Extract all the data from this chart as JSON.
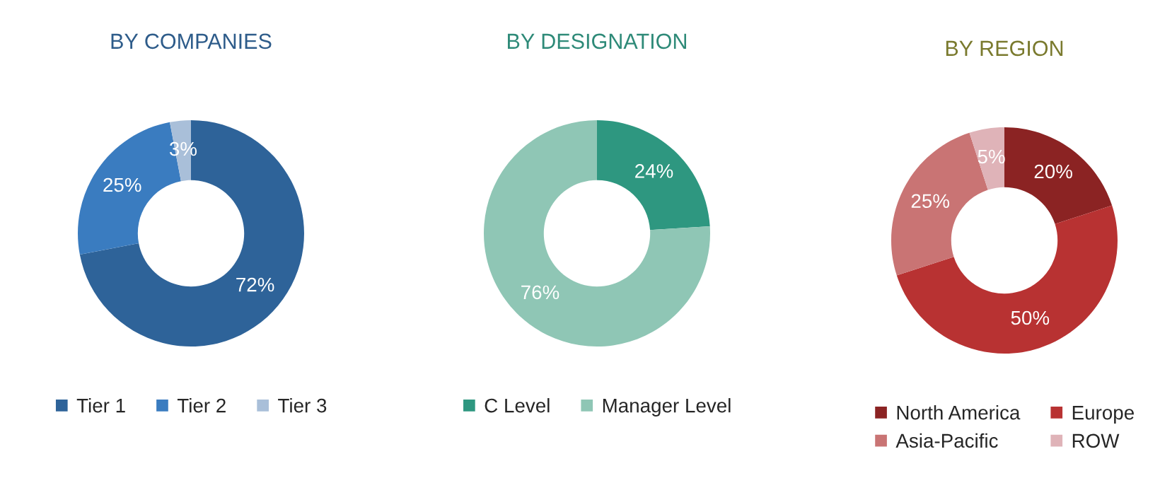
{
  "chart_data": [
    {
      "type": "donut",
      "title": "BY COMPANIES",
      "categories": [
        "Tier 1",
        "Tier 2",
        "Tier 3"
      ],
      "values": [
        72,
        25,
        3
      ],
      "colors": [
        "#2e6399",
        "#3a7cc0",
        "#a9bfd9"
      ],
      "value_labels": [
        "72%",
        "25%",
        "3%"
      ],
      "legend": "bottom"
    },
    {
      "type": "donut",
      "title": "BY DESIGNATION",
      "categories": [
        "C Level",
        "Manager Level"
      ],
      "values": [
        24,
        76
      ],
      "colors": [
        "#2e9780",
        "#8fc6b5"
      ],
      "value_labels": [
        "24%",
        "76%"
      ],
      "legend": "bottom"
    },
    {
      "type": "donut",
      "title": "BY REGION",
      "categories": [
        "North America",
        "Europe",
        "Asia-Pacific",
        "ROW"
      ],
      "values": [
        20,
        50,
        25,
        5
      ],
      "colors": [
        "#8b2323",
        "#b83232",
        "#c97474",
        "#dfb3b8"
      ],
      "value_labels": [
        "20%",
        "50%",
        "25%",
        "5%"
      ],
      "legend": "bottom"
    }
  ]
}
